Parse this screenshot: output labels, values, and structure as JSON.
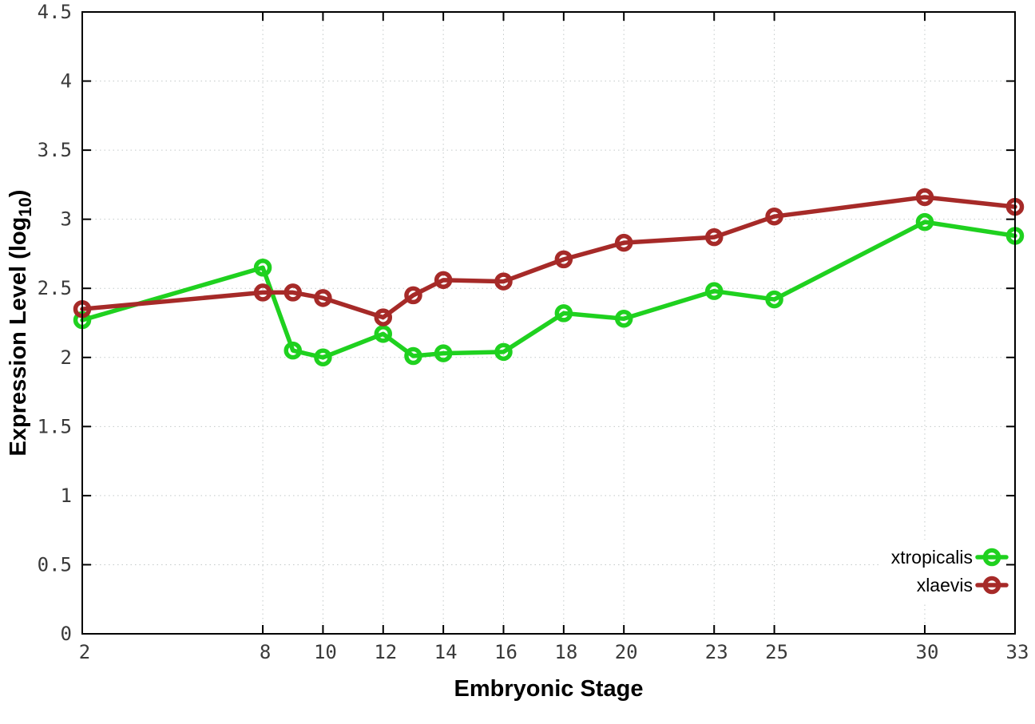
{
  "chart_data": {
    "type": "line",
    "title": "",
    "xlabel": "Embryonic Stage",
    "ylabel": "Expression Level (log10)",
    "ylabel_rich": {
      "prefix": "Expression Level (log",
      "subscript": "10",
      "suffix": ")"
    },
    "xlim": [
      2,
      33
    ],
    "ylim": [
      0,
      4.5
    ],
    "x_ticks": [
      2,
      8,
      10,
      12,
      14,
      16,
      18,
      20,
      23,
      25,
      30,
      33
    ],
    "y_ticks": [
      0,
      0.5,
      1,
      1.5,
      2,
      2.5,
      3,
      3.5,
      4,
      4.5
    ],
    "grid": true,
    "legend_position": "bottom-right",
    "marker": "open-circle",
    "x": [
      2,
      8,
      9,
      10,
      12,
      13,
      14,
      16,
      18,
      20,
      23,
      25,
      30,
      33
    ],
    "series": [
      {
        "name": "xtropicalis",
        "color": "#1fd11f",
        "values": [
          2.27,
          2.65,
          2.05,
          2.0,
          2.17,
          2.01,
          2.03,
          2.04,
          2.32,
          2.28,
          2.48,
          2.42,
          2.98,
          2.88
        ]
      },
      {
        "name": "xlaevis",
        "color": "#a62a28",
        "values": [
          2.35,
          2.47,
          2.47,
          2.43,
          2.29,
          2.45,
          2.56,
          2.55,
          2.71,
          2.83,
          2.87,
          3.02,
          3.16,
          3.09
        ]
      }
    ],
    "colors": {
      "grid": "#c3c9c9",
      "border": "#000000",
      "tick_text": "#3a3a3a"
    }
  }
}
